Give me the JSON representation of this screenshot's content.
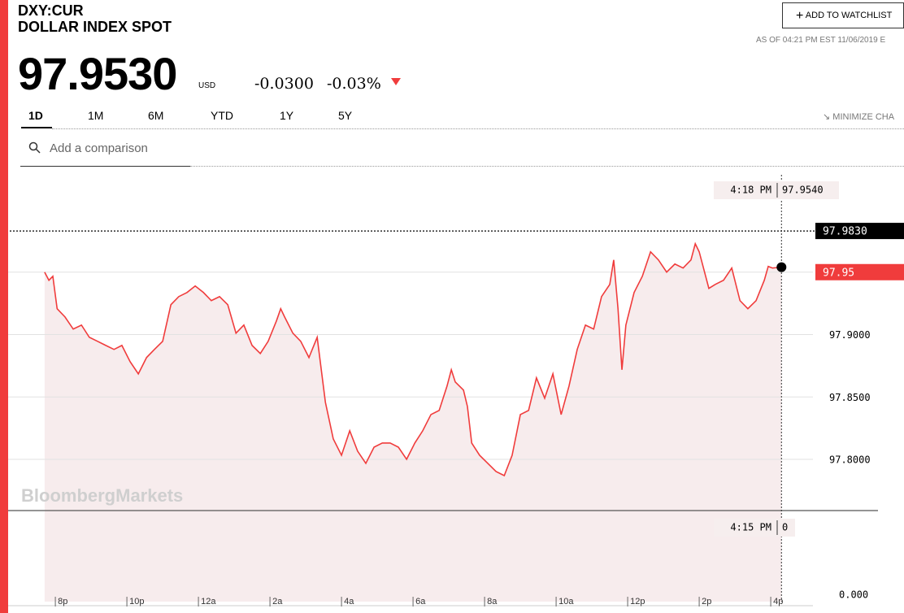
{
  "header": {
    "ticker": "DXY:CUR",
    "name": "DOLLAR INDEX SPOT",
    "price": "97.9530",
    "currency": "USD",
    "change": "-0.0300",
    "change_pct": "-0.03%",
    "watchlist": "ADD TO WATCHLIST",
    "as_of": "AS OF 04:21 PM EST 11/06/2019 E",
    "minimize": "MINIMIZE CHA",
    "tabs": [
      "1D",
      "1M",
      "6M",
      "YTD",
      "1Y",
      "5Y"
    ],
    "search": "Add a comparison"
  },
  "chart_data": {
    "type": "line",
    "color": "#f03c3c",
    "watermark": "BloombergMarkets",
    "x": [
      -0.3,
      -0.18,
      -0.07,
      0.05,
      0.27,
      0.5,
      0.73,
      0.95,
      1.18,
      1.41,
      1.64,
      1.86,
      2.09,
      2.32,
      2.55,
      2.77,
      3,
      3.23,
      3.45,
      3.68,
      3.91,
      4.14,
      4.36,
      4.59,
      4.82,
      5.05,
      5.27,
      5.5,
      5.73,
      5.95,
      6.18,
      6.3,
      6.41,
      6.64,
      6.86,
      7.09,
      7.32,
      7.55,
      7.77,
      8,
      8.23,
      8.45,
      8.68,
      8.91,
      9.14,
      9.36,
      9.59,
      9.82,
      10.05,
      10.27,
      10.5,
      10.73,
      10.95,
      11.07,
      11.18,
      11.41,
      11.52,
      11.64,
      11.86,
      12.09,
      12.32,
      12.55,
      12.77,
      13,
      13.23,
      13.45,
      13.68,
      13.91,
      14.14,
      14.36,
      14.59,
      14.82,
      15.05,
      15.27,
      15.5,
      15.61,
      15.73,
      15.84,
      15.95,
      16.18,
      16.41,
      16.64,
      16.86,
      17.09,
      17.32,
      17.55,
      17.77,
      17.89,
      18,
      18.27,
      18.45,
      18.68,
      18.91,
      19.14,
      19.36,
      19.59,
      19.82,
      19.93,
      20.05,
      20.3
    ],
    "values": [
      97.95,
      97.9435,
      97.9467,
      97.9207,
      97.9141,
      97.9044,
      97.9076,
      97.8978,
      97.8946,
      97.8913,
      97.8881,
      97.8913,
      97.8783,
      97.8685,
      97.8816,
      97.8881,
      97.8946,
      97.9239,
      97.9304,
      97.9337,
      97.9389,
      97.9337,
      97.9272,
      97.9304,
      97.9239,
      97.9011,
      97.9076,
      97.8913,
      97.8848,
      97.8946,
      97.9109,
      97.9207,
      97.9141,
      97.9011,
      97.8946,
      97.8816,
      97.8978,
      97.8457,
      97.8164,
      97.8033,
      97.8229,
      97.8066,
      97.7968,
      97.8098,
      97.8131,
      97.8131,
      97.8098,
      97.8001,
      97.8131,
      97.8229,
      97.8359,
      97.8392,
      97.8587,
      97.8718,
      97.862,
      97.8555,
      97.8424,
      97.8131,
      97.8033,
      97.7968,
      97.7903,
      97.787,
      97.8033,
      97.8359,
      97.8392,
      97.8653,
      97.849,
      97.8685,
      97.8359,
      97.8587,
      97.8881,
      97.9076,
      97.9044,
      97.9304,
      97.9402,
      97.9598,
      97.9207,
      97.8718,
      97.9076,
      97.9337,
      97.9467,
      97.9663,
      97.9598,
      97.95,
      97.9565,
      97.9533,
      97.9598,
      97.9728,
      97.9663,
      97.937,
      97.9402,
      97.9435,
      97.9533,
      97.9272,
      97.9207,
      97.9272,
      97.9435,
      97.9546,
      97.9533,
      97.954
    ],
    "xlim": [
      -1.32,
      21.18
    ],
    "xticks": [
      {
        "value": 0,
        "label": "8p"
      },
      {
        "value": 2,
        "label": "10p"
      },
      {
        "value": 4,
        "label": "12a"
      },
      {
        "value": 6,
        "label": "2a"
      },
      {
        "value": 8,
        "label": "4a"
      },
      {
        "value": 10,
        "label": "6a"
      },
      {
        "value": 12,
        "label": "8a"
      },
      {
        "value": 14,
        "label": "10a"
      },
      {
        "value": 16,
        "label": "12p"
      },
      {
        "value": 18,
        "label": "2p"
      },
      {
        "value": 20,
        "label": "4p"
      }
    ],
    "ylim": [
      97.759,
      98.028
    ],
    "yticks": [
      {
        "value": 97.8,
        "label": "97.8000"
      },
      {
        "value": 97.85,
        "label": "97.8500"
      },
      {
        "value": 97.9,
        "label": "97.9000"
      },
      {
        "value": 97.95,
        "label": "97.9500"
      }
    ],
    "grid": true,
    "reference_line": {
      "value": 97.983,
      "label": "97.9830"
    },
    "last_price": {
      "value": 97.95,
      "label": "97.95"
    },
    "crosshair": {
      "x": 20.3,
      "x_label": "4:18 PM",
      "y": 97.954,
      "y_label": "97.9540"
    },
    "volume": {
      "time_label": "4:15 PM",
      "value": 0,
      "yticks": [
        {
          "value": 0,
          "label": "0.000"
        }
      ]
    }
  }
}
